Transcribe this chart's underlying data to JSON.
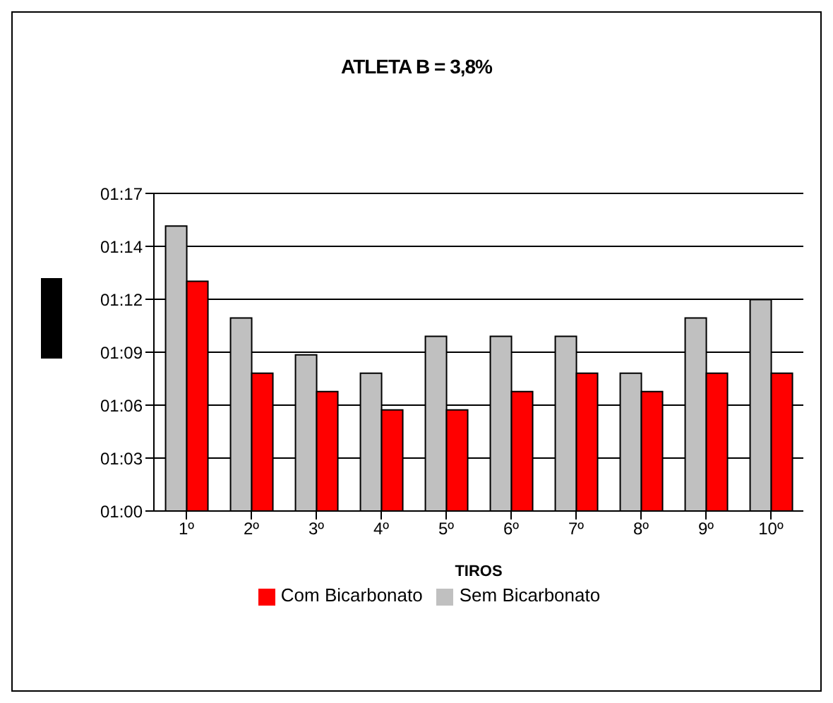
{
  "chart_data": {
    "type": "bar",
    "title": "ATLETA B = 3,8%",
    "xlabel": "TIROS",
    "categories": [
      "1º",
      "2º",
      "3º",
      "4º",
      "5º",
      "6º",
      "7º",
      "8º",
      "9º",
      "10º"
    ],
    "series": [
      {
        "name": "Sem Bicarbonato",
        "color": "#c0c0c0",
        "values": [
          75.5,
          70.5,
          68.5,
          67.5,
          69.5,
          69.5,
          69.5,
          67.5,
          70.5,
          71.5
        ]
      },
      {
        "name": "Com Bicarbonato",
        "color": "#ff0000",
        "values": [
          72.5,
          67.5,
          66.5,
          65.5,
          65.5,
          66.5,
          67.5,
          66.5,
          67.5,
          67.5
        ]
      }
    ],
    "ylim": [
      60,
      77.28
    ],
    "yticks": [
      {
        "value": 60,
        "label": "01:00"
      },
      {
        "value": 62.88,
        "label": "01:03"
      },
      {
        "value": 65.76,
        "label": "01:06"
      },
      {
        "value": 68.64,
        "label": "01:09"
      },
      {
        "value": 71.52,
        "label": "01:12"
      },
      {
        "value": 74.4,
        "label": "01:14"
      },
      {
        "value": 77.28,
        "label": "01:17"
      }
    ],
    "grid": "y",
    "legend": "bottom"
  }
}
